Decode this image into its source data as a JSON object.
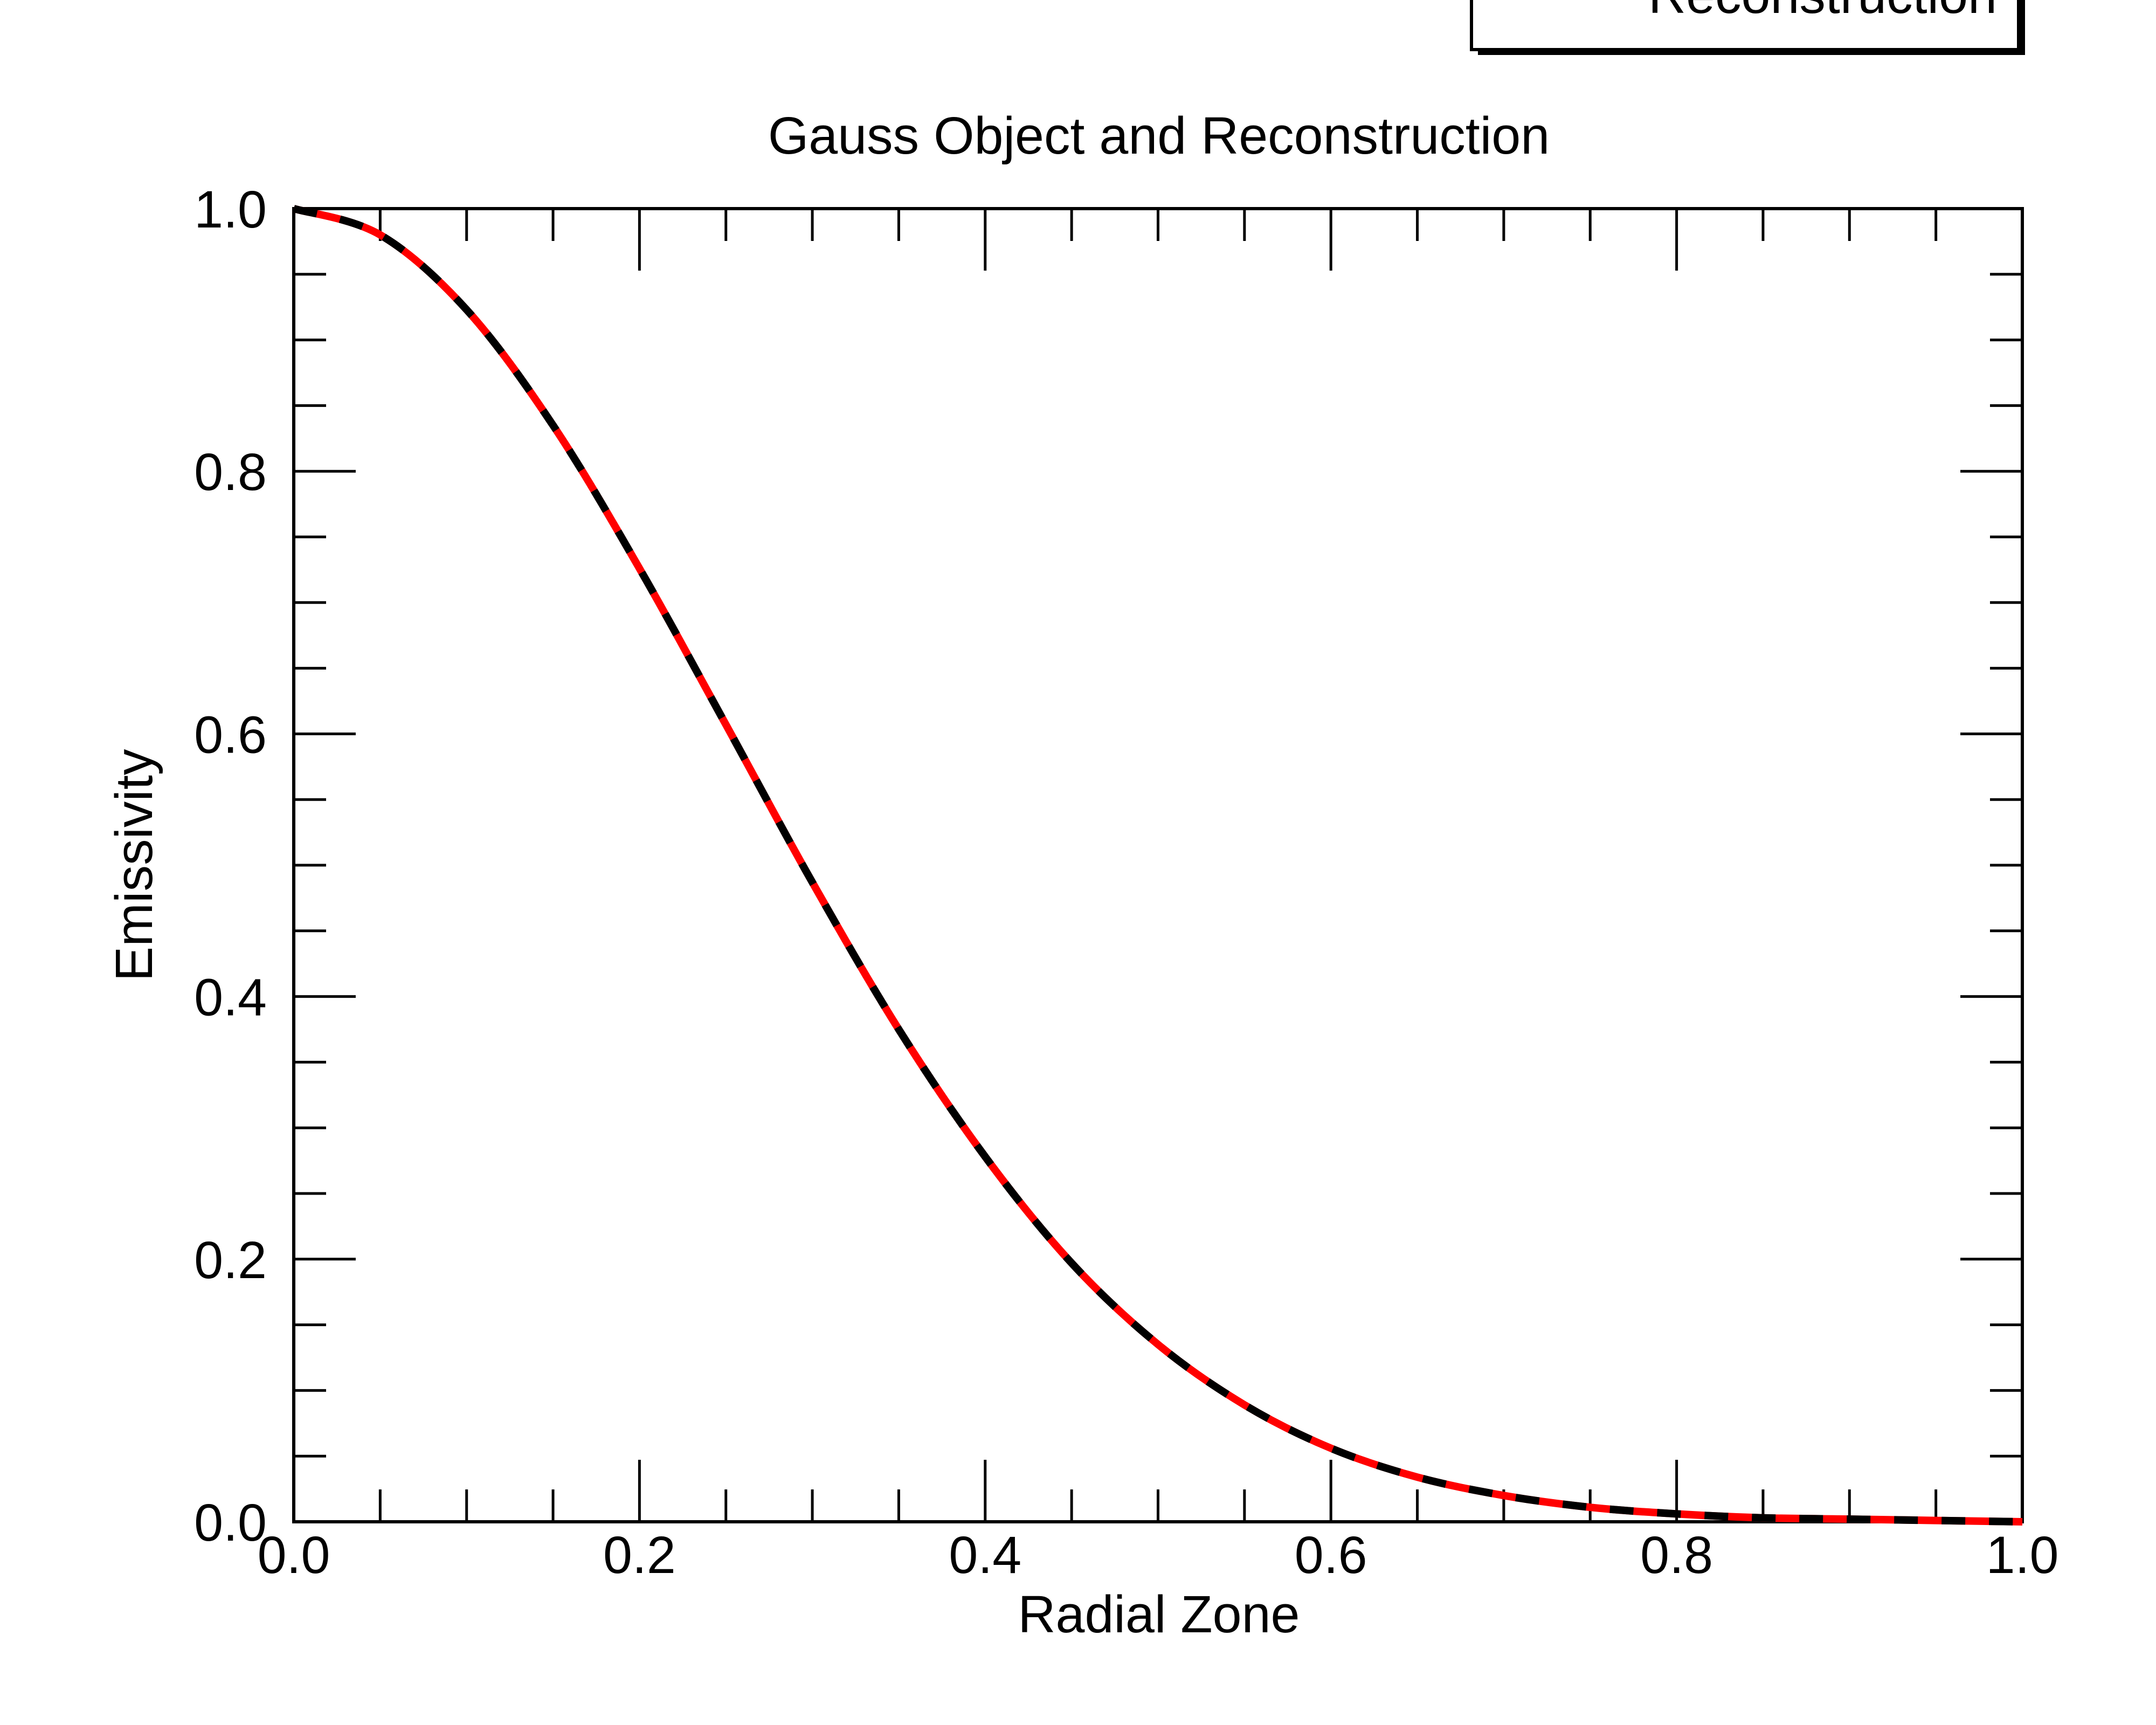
{
  "chart_data": {
    "type": "line",
    "title": "Gauss Object and Reconstruction",
    "xlabel": "Radial Zone",
    "ylabel": "Emissivity",
    "xlim": [
      0.0,
      1.0
    ],
    "ylim": [
      0.0,
      1.0
    ],
    "x_ticks": [
      "0.0",
      "0.2",
      "0.4",
      "0.6",
      "0.8",
      "1.0"
    ],
    "y_ticks": [
      "0.0",
      "0.2",
      "0.4",
      "0.6",
      "0.8",
      "1.0"
    ],
    "grid": false,
    "legend": {
      "placement": "top-right",
      "visible_text": "Reconstruction"
    },
    "series": [
      {
        "style": "solid",
        "color": "#ff0000",
        "x": [
          0.0,
          0.05,
          0.1,
          0.15,
          0.2,
          0.25,
          0.3,
          0.35,
          0.4,
          0.45,
          0.5,
          0.55,
          0.6,
          0.65,
          0.7,
          0.75,
          0.8,
          0.85,
          0.9,
          0.95,
          1.0
        ],
        "y": [
          1.0,
          0.98,
          0.923,
          0.835,
          0.726,
          0.607,
          0.487,
          0.375,
          0.278,
          0.197,
          0.135,
          0.089,
          0.056,
          0.034,
          0.02,
          0.011,
          0.006,
          0.003,
          0.002,
          0.001,
          0.0
        ]
      },
      {
        "name": "Reconstruction",
        "style": "dashed",
        "color": "#000000",
        "x": [
          0.0,
          0.05,
          0.1,
          0.15,
          0.2,
          0.25,
          0.3,
          0.35,
          0.4,
          0.45,
          0.5,
          0.55,
          0.6,
          0.65,
          0.7,
          0.75,
          0.8,
          0.85,
          0.9,
          0.95,
          1.0
        ],
        "y": [
          1.0,
          0.98,
          0.923,
          0.835,
          0.726,
          0.607,
          0.487,
          0.375,
          0.278,
          0.197,
          0.135,
          0.089,
          0.056,
          0.034,
          0.02,
          0.011,
          0.006,
          0.003,
          0.002,
          0.001,
          0.0
        ]
      }
    ]
  }
}
